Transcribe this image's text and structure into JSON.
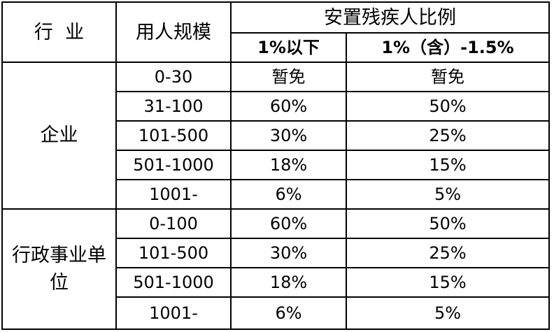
{
  "header": {
    "industry": "行  业",
    "scale": "用人规模",
    "ratio_group": "安置残疾人比例",
    "ratio_low": "1%以下",
    "ratio_high": "1%（含）-1.5%"
  },
  "groups": [
    {
      "industry": "企业",
      "rows": [
        {
          "scale": "0-30",
          "low": "暂免",
          "high": "暂免"
        },
        {
          "scale": "31-100",
          "low": "60%",
          "high": "50%"
        },
        {
          "scale": "101-500",
          "low": "30%",
          "high": "25%"
        },
        {
          "scale": "501-1000",
          "low": "18%",
          "high": "15%"
        },
        {
          "scale": "1001-",
          "low": "6%",
          "high": "5%"
        }
      ]
    },
    {
      "industry": "行政事业单位",
      "rows": [
        {
          "scale": "0-100",
          "low": "60%",
          "high": "50%"
        },
        {
          "scale": "101-500",
          "low": "30%",
          "high": "25%"
        },
        {
          "scale": "501-1000",
          "low": "18%",
          "high": "15%"
        },
        {
          "scale": "1001-",
          "low": "6%",
          "high": "5%"
        }
      ]
    }
  ]
}
